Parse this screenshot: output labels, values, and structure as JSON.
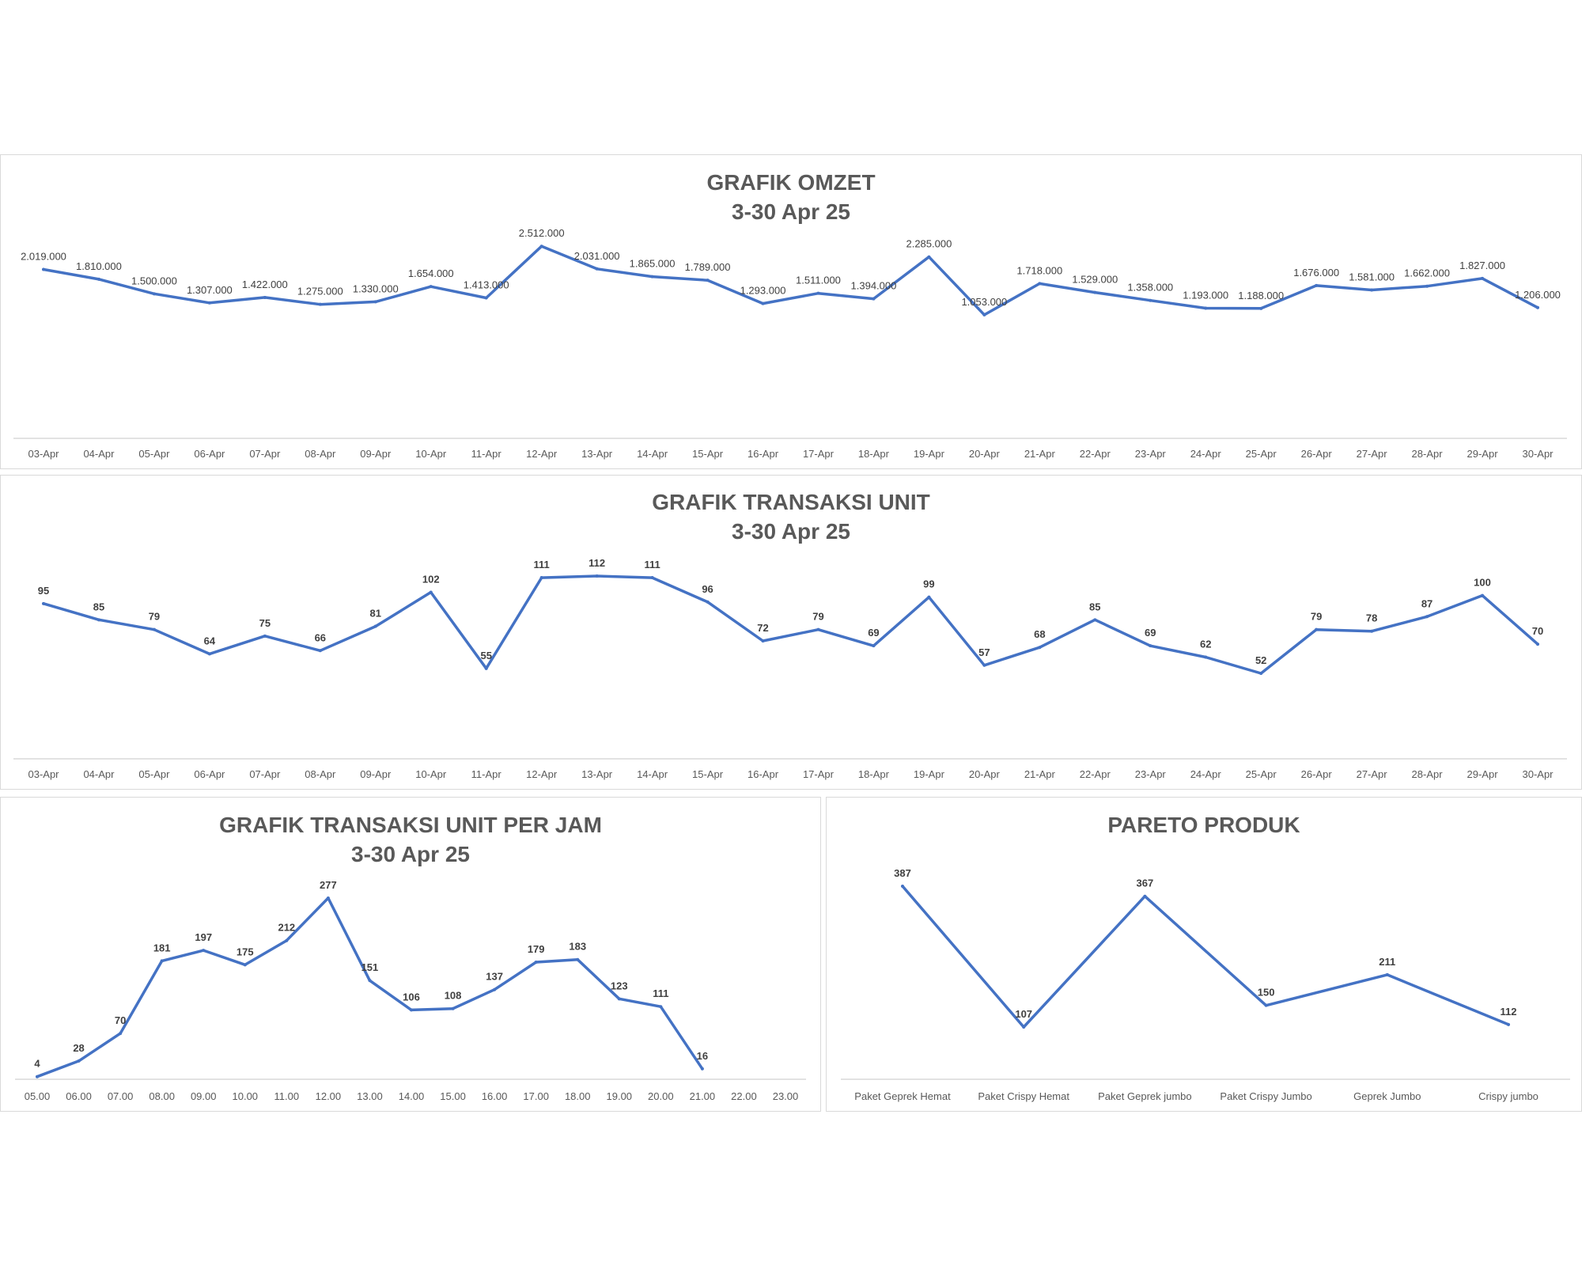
{
  "charts": {
    "omzet": {
      "title_line1": "GRAFIK OMZET",
      "title_line2": "3-30 Apr 25"
    },
    "unit": {
      "title_line1": "GRAFIK TRANSAKSI UNIT",
      "title_line2": "3-30 Apr 25"
    },
    "jam": {
      "title_line1": "GRAFIK TRANSAKSI UNIT PER JAM",
      "title_line2": "3-30 Apr 25"
    },
    "pareto": {
      "title_line1": "PARETO PRODUK"
    }
  },
  "chart_data": [
    {
      "type": "line",
      "title": "GRAFIK OMZET 3-30 Apr 25",
      "line_color": "#4472c4",
      "categories": [
        "03-Apr",
        "04-Apr",
        "05-Apr",
        "06-Apr",
        "07-Apr",
        "08-Apr",
        "09-Apr",
        "10-Apr",
        "11-Apr",
        "12-Apr",
        "13-Apr",
        "14-Apr",
        "15-Apr",
        "16-Apr",
        "17-Apr",
        "18-Apr",
        "19-Apr",
        "20-Apr",
        "21-Apr",
        "22-Apr",
        "23-Apr",
        "24-Apr",
        "25-Apr",
        "26-Apr",
        "27-Apr",
        "28-Apr",
        "29-Apr",
        "30-Apr"
      ],
      "values": [
        2019000,
        1810000,
        1500000,
        1307000,
        1422000,
        1275000,
        1330000,
        1654000,
        1413000,
        2512000,
        2031000,
        1865000,
        1789000,
        1293000,
        1511000,
        1394000,
        2285000,
        1053000,
        1718000,
        1529000,
        1358000,
        1193000,
        1188000,
        1676000,
        1581000,
        1662000,
        1827000,
        1206000
      ],
      "data_labels": [
        "2.019.000",
        "1.810.000",
        "1.500.000",
        "1.307.000",
        "1.422.000",
        "1.275.000",
        "1.330.000",
        "1.654.000",
        "1.413.000",
        "2.512.000",
        "2.031.000",
        "1.865.000",
        "1.789.000",
        "1.293.000",
        "1.511.000",
        "1.394.000",
        "2.285.000",
        "1.053.000",
        "1.718.000",
        "1.529.000",
        "1.358.000",
        "1.193.000",
        "1.188.000",
        "1.676.000",
        "1.581.000",
        "1.662.000",
        "1.827.000",
        "1.206.000"
      ],
      "grid": false,
      "legend": "none"
    },
    {
      "type": "line",
      "title": "GRAFIK TRANSAKSI UNIT 3-30 Apr 25",
      "line_color": "#4472c4",
      "categories": [
        "03-Apr",
        "04-Apr",
        "05-Apr",
        "06-Apr",
        "07-Apr",
        "08-Apr",
        "09-Apr",
        "10-Apr",
        "11-Apr",
        "12-Apr",
        "13-Apr",
        "14-Apr",
        "15-Apr",
        "16-Apr",
        "17-Apr",
        "18-Apr",
        "19-Apr",
        "20-Apr",
        "21-Apr",
        "22-Apr",
        "23-Apr",
        "24-Apr",
        "25-Apr",
        "26-Apr",
        "27-Apr",
        "28-Apr",
        "29-Apr",
        "30-Apr"
      ],
      "values": [
        95,
        85,
        79,
        64,
        75,
        66,
        81,
        102,
        55,
        111,
        112,
        111,
        96,
        72,
        79,
        69,
        99,
        57,
        68,
        85,
        69,
        62,
        52,
        79,
        78,
        87,
        100,
        70
      ],
      "grid": false,
      "legend": "none"
    },
    {
      "type": "line",
      "title": "GRAFIK TRANSAKSI UNIT PER JAM 3-30 Apr 25",
      "line_color": "#4472c4",
      "categories": [
        "05.00",
        "06.00",
        "07.00",
        "08.00",
        "09.00",
        "10.00",
        "11.00",
        "12.00",
        "13.00",
        "14.00",
        "15.00",
        "16.00",
        "17.00",
        "18.00",
        "19.00",
        "20.00",
        "21.00",
        "22.00",
        "23.00"
      ],
      "values": [
        4,
        28,
        70,
        181,
        197,
        175,
        212,
        277,
        151,
        106,
        108,
        137,
        179,
        183,
        123,
        111,
        16,
        null,
        null
      ],
      "grid": false,
      "legend": "none"
    },
    {
      "type": "line",
      "title": "PARETO PRODUK",
      "line_color": "#4472c4",
      "categories": [
        "Paket Geprek Hemat",
        "Paket Crispy Hemat",
        "Paket Geprek jumbo",
        "Paket Crispy Jumbo",
        "Geprek Jumbo",
        "Crispy jumbo"
      ],
      "values": [
        387,
        107,
        367,
        150,
        211,
        112
      ],
      "grid": false,
      "legend": "none"
    }
  ]
}
